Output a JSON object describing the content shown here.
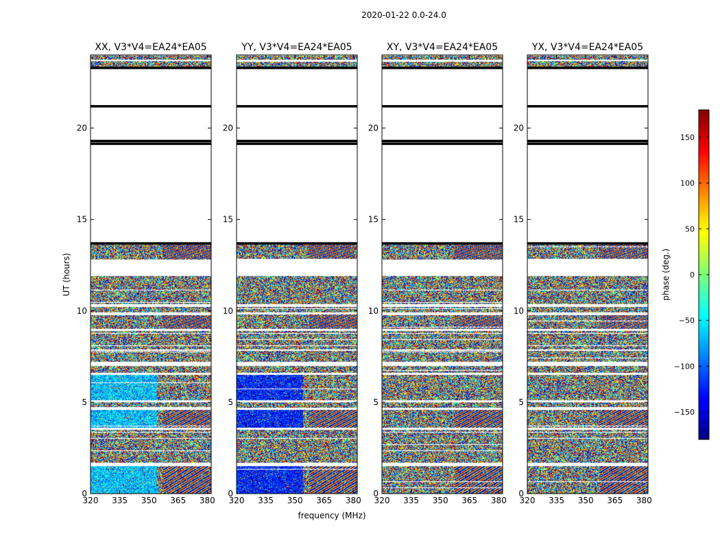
{
  "figure": {
    "suptitle": "2020-01-22 0.0-24.0",
    "ylabel": "UT (hours)",
    "xlabel": "frequency (MHz)",
    "colorbar_label": "phase (deg.)"
  },
  "chart_data": {
    "type": "heatmap",
    "title": "2020-01-22 0.0-24.0",
    "xlabel": "frequency (MHz)",
    "ylabel": "UT (hours)",
    "xlim": [
      320,
      382
    ],
    "ylim": [
      0,
      24
    ],
    "x_ticks": [
      320,
      335,
      350,
      365,
      380
    ],
    "x_tick_labels": [
      "320",
      "335",
      "350",
      "365",
      "380"
    ],
    "y_ticks": [
      0,
      5,
      10,
      15,
      20
    ],
    "y_tick_labels": [
      "0",
      "5",
      "10",
      "15",
      "20"
    ],
    "color_range": [
      -180,
      180
    ],
    "colorbar_ticks": [
      150,
      100,
      50,
      0,
      -50,
      -100,
      -150
    ],
    "colorbar_tick_labels": [
      "150",
      "100",
      "50",
      "0",
      "−50",
      "−100",
      "−150"
    ],
    "colormap": "jet",
    "panels": [
      {
        "key": "xx",
        "title": "XX, V3*V4=EA24*EA05"
      },
      {
        "key": "yy",
        "title": "YY, V3*V4=EA24*EA05"
      },
      {
        "key": "xy",
        "title": "XY, V3*V4=EA24*EA05"
      },
      {
        "key": "yx",
        "title": "YX, V3*V4=EA24*EA05"
      }
    ],
    "data_bands_hours": [
      [
        0.0,
        1.5
      ],
      [
        1.7,
        3.5
      ],
      [
        3.6,
        4.6
      ],
      [
        4.7,
        5.0
      ],
      [
        5.1,
        6.5
      ],
      [
        6.6,
        7.0
      ],
      [
        7.2,
        7.8
      ],
      [
        7.9,
        8.9
      ],
      [
        9.0,
        9.8
      ],
      [
        9.9,
        10.2
      ],
      [
        10.35,
        11.9
      ],
      [
        12.8,
        13.7
      ],
      [
        23.3,
        23.65
      ],
      [
        23.75,
        24.0
      ]
    ],
    "flag_lines_hours": [
      21.2,
      19.3,
      19.15,
      23.3,
      13.7
    ]
  }
}
